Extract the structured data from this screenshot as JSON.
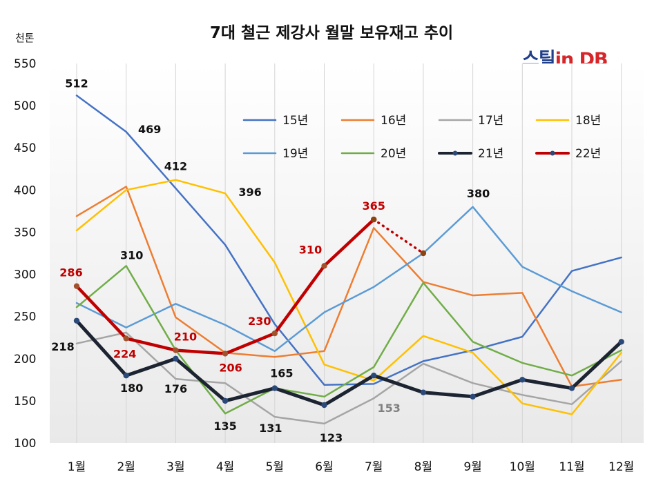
{
  "title": "7대 철근 제강사 월말 보유재고 추이",
  "unit": "천톤",
  "logo": {
    "part1": "스틸",
    "part2": "in DB"
  },
  "chart_data": {
    "type": "line",
    "title": "7대 철근 제강사 월말 보유재고 추이",
    "ylabel": "천톤",
    "ylim": [
      100,
      550
    ],
    "y_ticks": [
      "100",
      "150",
      "200",
      "250",
      "300",
      "350",
      "400",
      "450",
      "500",
      "550"
    ],
    "categories": [
      "1월",
      "2월",
      "3월",
      "4월",
      "5월",
      "6월",
      "7월",
      "8월",
      "9월",
      "10월",
      "11월",
      "12월"
    ],
    "grid": "vertical",
    "series": [
      {
        "name": "15년",
        "color": "#4472c4",
        "width": 2.5,
        "values": [
          512,
          469,
          402,
          335,
          241,
          169,
          170,
          197,
          210,
          226,
          304,
          320
        ]
      },
      {
        "name": "16년",
        "color": "#ed7d31",
        "width": 2.5,
        "values": [
          369,
          404,
          249,
          207,
          202,
          209,
          355,
          291,
          275,
          278,
          167,
          175
        ]
      },
      {
        "name": "17년",
        "color": "#a5a5a5",
        "width": 2.5,
        "values": [
          218,
          231,
          176,
          171,
          131,
          123,
          153,
          194,
          171,
          157,
          146,
          197
        ]
      },
      {
        "name": "18년",
        "color": "#ffc000",
        "width": 2.5,
        "values": [
          352,
          400,
          412,
          396,
          314,
          193,
          174,
          227,
          207,
          147,
          134,
          207
        ]
      },
      {
        "name": "19년",
        "color": "#5b9bd5",
        "width": 2.5,
        "values": [
          266,
          237,
          265,
          240,
          209,
          255,
          285,
          325,
          380,
          309,
          280,
          255
        ]
      },
      {
        "name": "20년",
        "color": "#70ad47",
        "width": 2.5,
        "values": [
          261,
          310,
          210,
          135,
          165,
          155,
          190,
          290,
          220,
          195,
          180,
          210
        ]
      },
      {
        "name": "21년",
        "color": "#1c2331",
        "width": 5,
        "markers": true,
        "values": [
          245,
          180,
          200,
          150,
          165,
          145,
          180,
          160,
          155,
          175,
          165,
          220
        ]
      },
      {
        "name": "22년",
        "color": "#c00000",
        "width": 4.5,
        "markers": true,
        "values": [
          286,
          224,
          210,
          206,
          230,
          310,
          365,
          null,
          null,
          null,
          null,
          null
        ]
      },
      {
        "name": "22년",
        "color": "#c00000",
        "width": 3.5,
        "markers": true,
        "dotted": true,
        "legend": false,
        "values": [
          null,
          null,
          null,
          null,
          null,
          null,
          365,
          325,
          null,
          null,
          null,
          null
        ]
      }
    ],
    "data_labels": [
      {
        "text": "512",
        "x": "1월",
        "y": 512,
        "color": "#111111"
      },
      {
        "text": "469",
        "x": "2월",
        "y": 469,
        "color": "#111111"
      },
      {
        "text": "412",
        "x": "3월",
        "y": 412,
        "color": "#111111"
      },
      {
        "text": "396",
        "x": "4월",
        "y": 396,
        "color": "#111111"
      },
      {
        "text": "380",
        "x": "9월",
        "y": 380,
        "color": "#111111"
      },
      {
        "text": "310",
        "x": "2월",
        "y": 310,
        "color": "#111111"
      },
      {
        "text": "218",
        "x": "1월",
        "y": 218,
        "color": "#111111"
      },
      {
        "text": "180",
        "x": "2월",
        "y": 180,
        "color": "#111111"
      },
      {
        "text": "176",
        "x": "3월",
        "y": 176,
        "color": "#111111"
      },
      {
        "text": "135",
        "x": "4월",
        "y": 135,
        "color": "#111111"
      },
      {
        "text": "165",
        "x": "5월",
        "y": 165,
        "color": "#111111"
      },
      {
        "text": "131",
        "x": "5월",
        "y": 131,
        "color": "#111111"
      },
      {
        "text": "123",
        "x": "6월",
        "y": 123,
        "color": "#111111"
      },
      {
        "text": "153",
        "x": "7월",
        "y": 153,
        "color": "#808080"
      },
      {
        "text": "286",
        "x": "1월",
        "y": 286,
        "color": "#c00000"
      },
      {
        "text": "224",
        "x": "2월",
        "y": 224,
        "color": "#c00000"
      },
      {
        "text": "210",
        "x": "3월",
        "y": 210,
        "color": "#c00000"
      },
      {
        "text": "206",
        "x": "4월",
        "y": 206,
        "color": "#c00000"
      },
      {
        "text": "230",
        "x": "5월",
        "y": 230,
        "color": "#c00000"
      },
      {
        "text": "310",
        "x": "6월",
        "y": 310,
        "color": "#c00000"
      },
      {
        "text": "365",
        "x": "7월",
        "y": 365,
        "color": "#c00000"
      }
    ]
  }
}
